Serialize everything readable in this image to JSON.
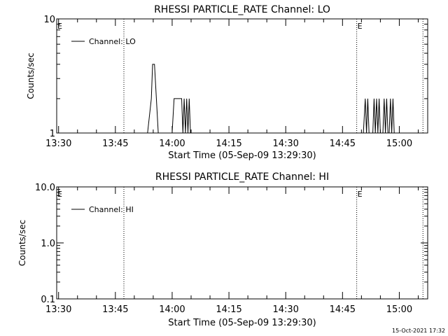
{
  "chart_data": [
    {
      "type": "line",
      "title": "RHESSI PARTICLE_RATE Channel: LO",
      "xlabel": "Start Time (05-Sep-09 13:29:30)",
      "ylabel": "Counts/sec",
      "xlim": [
        "13:29:30",
        "15:07:30"
      ],
      "ylim": [
        1,
        10
      ],
      "yscale": "log",
      "x_ticks": [
        "13:30",
        "13:45",
        "14:00",
        "14:15",
        "14:30",
        "14:45",
        "15:00"
      ],
      "y_ticks": [
        "1",
        "10"
      ],
      "vlines": [
        {
          "x": "13:47:15",
          "label": "",
          "style": "dotted"
        },
        {
          "x": "14:48:45",
          "label": "E",
          "style": "dotted"
        },
        {
          "x": "15:06:15",
          "label": "",
          "style": "dotted"
        }
      ],
      "edge_marks": [
        "E"
      ],
      "legend": {
        "entries": [
          "Channel: LO"
        ],
        "position": "top-left"
      },
      "series": [
        {
          "name": "Channel: LO",
          "points": [
            [
              "13:29:30",
              1
            ],
            [
              "13:53:30",
              1
            ],
            [
              "13:54:30",
              2
            ],
            [
              "13:54:50",
              4
            ],
            [
              "13:55:20",
              4
            ],
            [
              "13:55:50",
              2
            ],
            [
              "13:56:20",
              1
            ],
            [
              "14:00:00",
              1
            ],
            [
              "14:00:30",
              2
            ],
            [
              "14:02:30",
              2
            ],
            [
              "14:02:50",
              1
            ],
            [
              "14:03:10",
              2
            ],
            [
              "14:03:30",
              1
            ],
            [
              "14:03:50",
              2
            ],
            [
              "14:04:10",
              1
            ],
            [
              "14:04:30",
              2
            ],
            [
              "14:04:50",
              1
            ],
            [
              "14:05:00",
              1
            ],
            [
              "14:50:30",
              1
            ],
            [
              "14:51:00",
              2
            ],
            [
              "14:51:20",
              1
            ],
            [
              "14:51:40",
              2
            ],
            [
              "14:52:00",
              1
            ],
            [
              "14:53:00",
              1
            ],
            [
              "14:53:20",
              2
            ],
            [
              "14:53:40",
              1
            ],
            [
              "14:54:00",
              2
            ],
            [
              "14:54:20",
              1
            ],
            [
              "14:54:40",
              2
            ],
            [
              "14:55:00",
              1
            ],
            [
              "14:55:40",
              1
            ],
            [
              "14:56:00",
              2
            ],
            [
              "14:56:20",
              1
            ],
            [
              "14:56:40",
              2
            ],
            [
              "14:57:00",
              1
            ],
            [
              "14:57:20",
              1
            ],
            [
              "14:57:40",
              2
            ],
            [
              "14:58:00",
              1
            ],
            [
              "14:58:20",
              2
            ],
            [
              "14:58:40",
              1
            ],
            [
              "15:07:30",
              1
            ]
          ]
        }
      ]
    },
    {
      "type": "line",
      "title": "RHESSI PARTICLE_RATE Channel: HI",
      "xlabel": "Start Time (05-Sep-09 13:29:30)",
      "ylabel": "Counts/sec",
      "xlim": [
        "13:29:30",
        "15:07:30"
      ],
      "ylim": [
        0.1,
        10
      ],
      "yscale": "log",
      "x_ticks": [
        "13:30",
        "13:45",
        "14:00",
        "14:15",
        "14:30",
        "14:45",
        "15:00"
      ],
      "y_ticks": [
        "0.1",
        "1.0",
        "10.0"
      ],
      "vlines": [
        {
          "x": "13:47:15",
          "label": "",
          "style": "dotted"
        },
        {
          "x": "14:48:45",
          "label": "E",
          "style": "dotted"
        },
        {
          "x": "15:06:15",
          "label": "",
          "style": "dotted"
        }
      ],
      "edge_marks": [
        "E"
      ],
      "legend": {
        "entries": [
          "Channel: HI"
        ],
        "position": "top-left"
      },
      "series": [
        {
          "name": "Channel: HI",
          "points": []
        }
      ]
    }
  ],
  "footer": {
    "timestamp": "15-Oct-2021 17:32"
  },
  "colors": {
    "background": "#ffffff",
    "foreground": "#000000"
  }
}
